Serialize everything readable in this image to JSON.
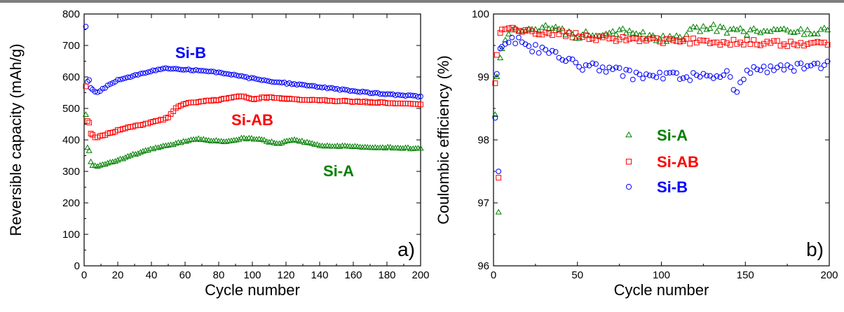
{
  "chart_data": [
    {
      "type": "scatter",
      "xlabel": "Cycle number",
      "ylabel": "Reversible capacity (mAh/g)",
      "xlim": [
        0,
        200
      ],
      "ylim": [
        0,
        800
      ],
      "xticks": [
        0,
        20,
        40,
        60,
        80,
        100,
        120,
        140,
        160,
        180,
        200
      ],
      "yticks": [
        0,
        100,
        200,
        300,
        400,
        500,
        600,
        700,
        800
      ],
      "panel_label": "a)",
      "grid": false,
      "series": [
        {
          "name": "Si-B",
          "marker": "circle",
          "color": "#0000ff",
          "points": [
            [
              1,
              760
            ],
            [
              2,
              585
            ],
            [
              3,
              590
            ],
            [
              4,
              565
            ],
            [
              6,
              555
            ],
            [
              8,
              552
            ],
            [
              10,
              558
            ],
            [
              14,
              572
            ],
            [
              20,
              590
            ],
            [
              30,
              605
            ],
            [
              40,
              618
            ],
            [
              48,
              628
            ],
            [
              55,
              625
            ],
            [
              65,
              622
            ],
            [
              75,
              618
            ],
            [
              85,
              610
            ],
            [
              100,
              595
            ],
            [
              120,
              580
            ],
            [
              140,
              568
            ],
            [
              160,
              555
            ],
            [
              180,
              545
            ],
            [
              200,
              538
            ]
          ]
        },
        {
          "name": "Si-AB",
          "marker": "square",
          "color": "#ff0000",
          "points": [
            [
              1,
              570
            ],
            [
              2,
              460
            ],
            [
              3,
              455
            ],
            [
              4,
              420
            ],
            [
              6,
              410
            ],
            [
              8,
              408
            ],
            [
              10,
              412
            ],
            [
              20,
              430
            ],
            [
              30,
              445
            ],
            [
              40,
              455
            ],
            [
              50,
              470
            ],
            [
              55,
              505
            ],
            [
              60,
              515
            ],
            [
              70,
              522
            ],
            [
              80,
              528
            ],
            [
              90,
              537
            ],
            [
              95,
              537
            ],
            [
              100,
              530
            ],
            [
              108,
              535
            ],
            [
              120,
              530
            ],
            [
              140,
              526
            ],
            [
              160,
              522
            ],
            [
              180,
              518
            ],
            [
              200,
              512
            ]
          ]
        },
        {
          "name": "Si-A",
          "marker": "triangle",
          "color": "#008000",
          "points": [
            [
              1,
              480
            ],
            [
              2,
              375
            ],
            [
              3,
              365
            ],
            [
              4,
              330
            ],
            [
              5,
              318
            ],
            [
              8,
              315
            ],
            [
              10,
              318
            ],
            [
              20,
              335
            ],
            [
              30,
              355
            ],
            [
              40,
              370
            ],
            [
              50,
              382
            ],
            [
              60,
              395
            ],
            [
              68,
              403
            ],
            [
              75,
              398
            ],
            [
              85,
              395
            ],
            [
              95,
              405
            ],
            [
              105,
              400
            ],
            [
              115,
              388
            ],
            [
              125,
              400
            ],
            [
              140,
              382
            ],
            [
              160,
              378
            ],
            [
              180,
              375
            ],
            [
              200,
              372
            ]
          ]
        }
      ]
    },
    {
      "type": "scatter",
      "xlabel": "Cycle number",
      "ylabel": "Coulombic efficiency (%)",
      "xlim": [
        0,
        200
      ],
      "ylim": [
        96,
        100
      ],
      "xticks": [
        0,
        50,
        100,
        150,
        200
      ],
      "yticks": [
        96,
        97,
        98,
        99,
        100
      ],
      "panel_label": "b)",
      "legend": "center",
      "grid": false,
      "series": [
        {
          "name": "Si-A",
          "marker": "triangle",
          "color": "#008000",
          "points": [
            [
              1,
              98.4
            ],
            [
              2,
              99.0
            ],
            [
              3,
              96.85
            ],
            [
              4,
              99.3
            ],
            [
              6,
              99.6
            ],
            [
              10,
              99.7
            ],
            [
              20,
              99.75
            ],
            [
              30,
              99.8
            ],
            [
              40,
              99.72
            ],
            [
              50,
              99.65
            ],
            [
              60,
              99.7
            ],
            [
              70,
              99.72
            ],
            [
              80,
              99.75
            ],
            [
              90,
              99.65
            ],
            [
              100,
              99.6
            ],
            [
              110,
              99.6
            ],
            [
              120,
              99.75
            ],
            [
              130,
              99.8
            ],
            [
              140,
              99.72
            ],
            [
              150,
              99.72
            ],
            [
              160,
              99.72
            ],
            [
              170,
              99.73
            ],
            [
              180,
              99.72
            ],
            [
              190,
              99.72
            ],
            [
              200,
              99.75
            ]
          ]
        },
        {
          "name": "Si-AB",
          "marker": "square",
          "color": "#ff0000",
          "points": [
            [
              1,
              98.9
            ],
            [
              2,
              99.35
            ],
            [
              3,
              97.4
            ],
            [
              4,
              99.7
            ],
            [
              6,
              99.75
            ],
            [
              10,
              99.78
            ],
            [
              20,
              99.72
            ],
            [
              30,
              99.7
            ],
            [
              40,
              99.7
            ],
            [
              50,
              99.65
            ],
            [
              60,
              99.6
            ],
            [
              70,
              99.62
            ],
            [
              80,
              99.6
            ],
            [
              90,
              99.6
            ],
            [
              100,
              99.58
            ],
            [
              110,
              99.55
            ],
            [
              120,
              99.58
            ],
            [
              130,
              99.56
            ],
            [
              140,
              99.55
            ],
            [
              150,
              99.55
            ],
            [
              160,
              99.54
            ],
            [
              170,
              99.53
            ],
            [
              180,
              99.52
            ],
            [
              190,
              99.52
            ],
            [
              200,
              99.52
            ]
          ]
        },
        {
          "name": "Si-B",
          "marker": "circle",
          "color": "#0000ff",
          "points": [
            [
              1,
              98.35
            ],
            [
              2,
              99.05
            ],
            [
              3,
              97.5
            ],
            [
              4,
              99.45
            ],
            [
              6,
              99.5
            ],
            [
              10,
              99.55
            ],
            [
              15,
              99.6
            ],
            [
              20,
              99.5
            ],
            [
              25,
              99.45
            ],
            [
              30,
              99.42
            ],
            [
              35,
              99.38
            ],
            [
              40,
              99.3
            ],
            [
              45,
              99.22
            ],
            [
              50,
              99.18
            ],
            [
              60,
              99.15
            ],
            [
              70,
              99.1
            ],
            [
              80,
              99.05
            ],
            [
              90,
              99.0
            ],
            [
              100,
              99.0
            ],
            [
              110,
              99.0
            ],
            [
              120,
              99.02
            ],
            [
              130,
              99.05
            ],
            [
              140,
              99.05
            ],
            [
              145,
              98.75
            ],
            [
              150,
              99.08
            ],
            [
              160,
              99.1
            ],
            [
              170,
              99.12
            ],
            [
              180,
              99.15
            ],
            [
              190,
              99.15
            ],
            [
              200,
              99.2
            ]
          ]
        }
      ]
    }
  ]
}
